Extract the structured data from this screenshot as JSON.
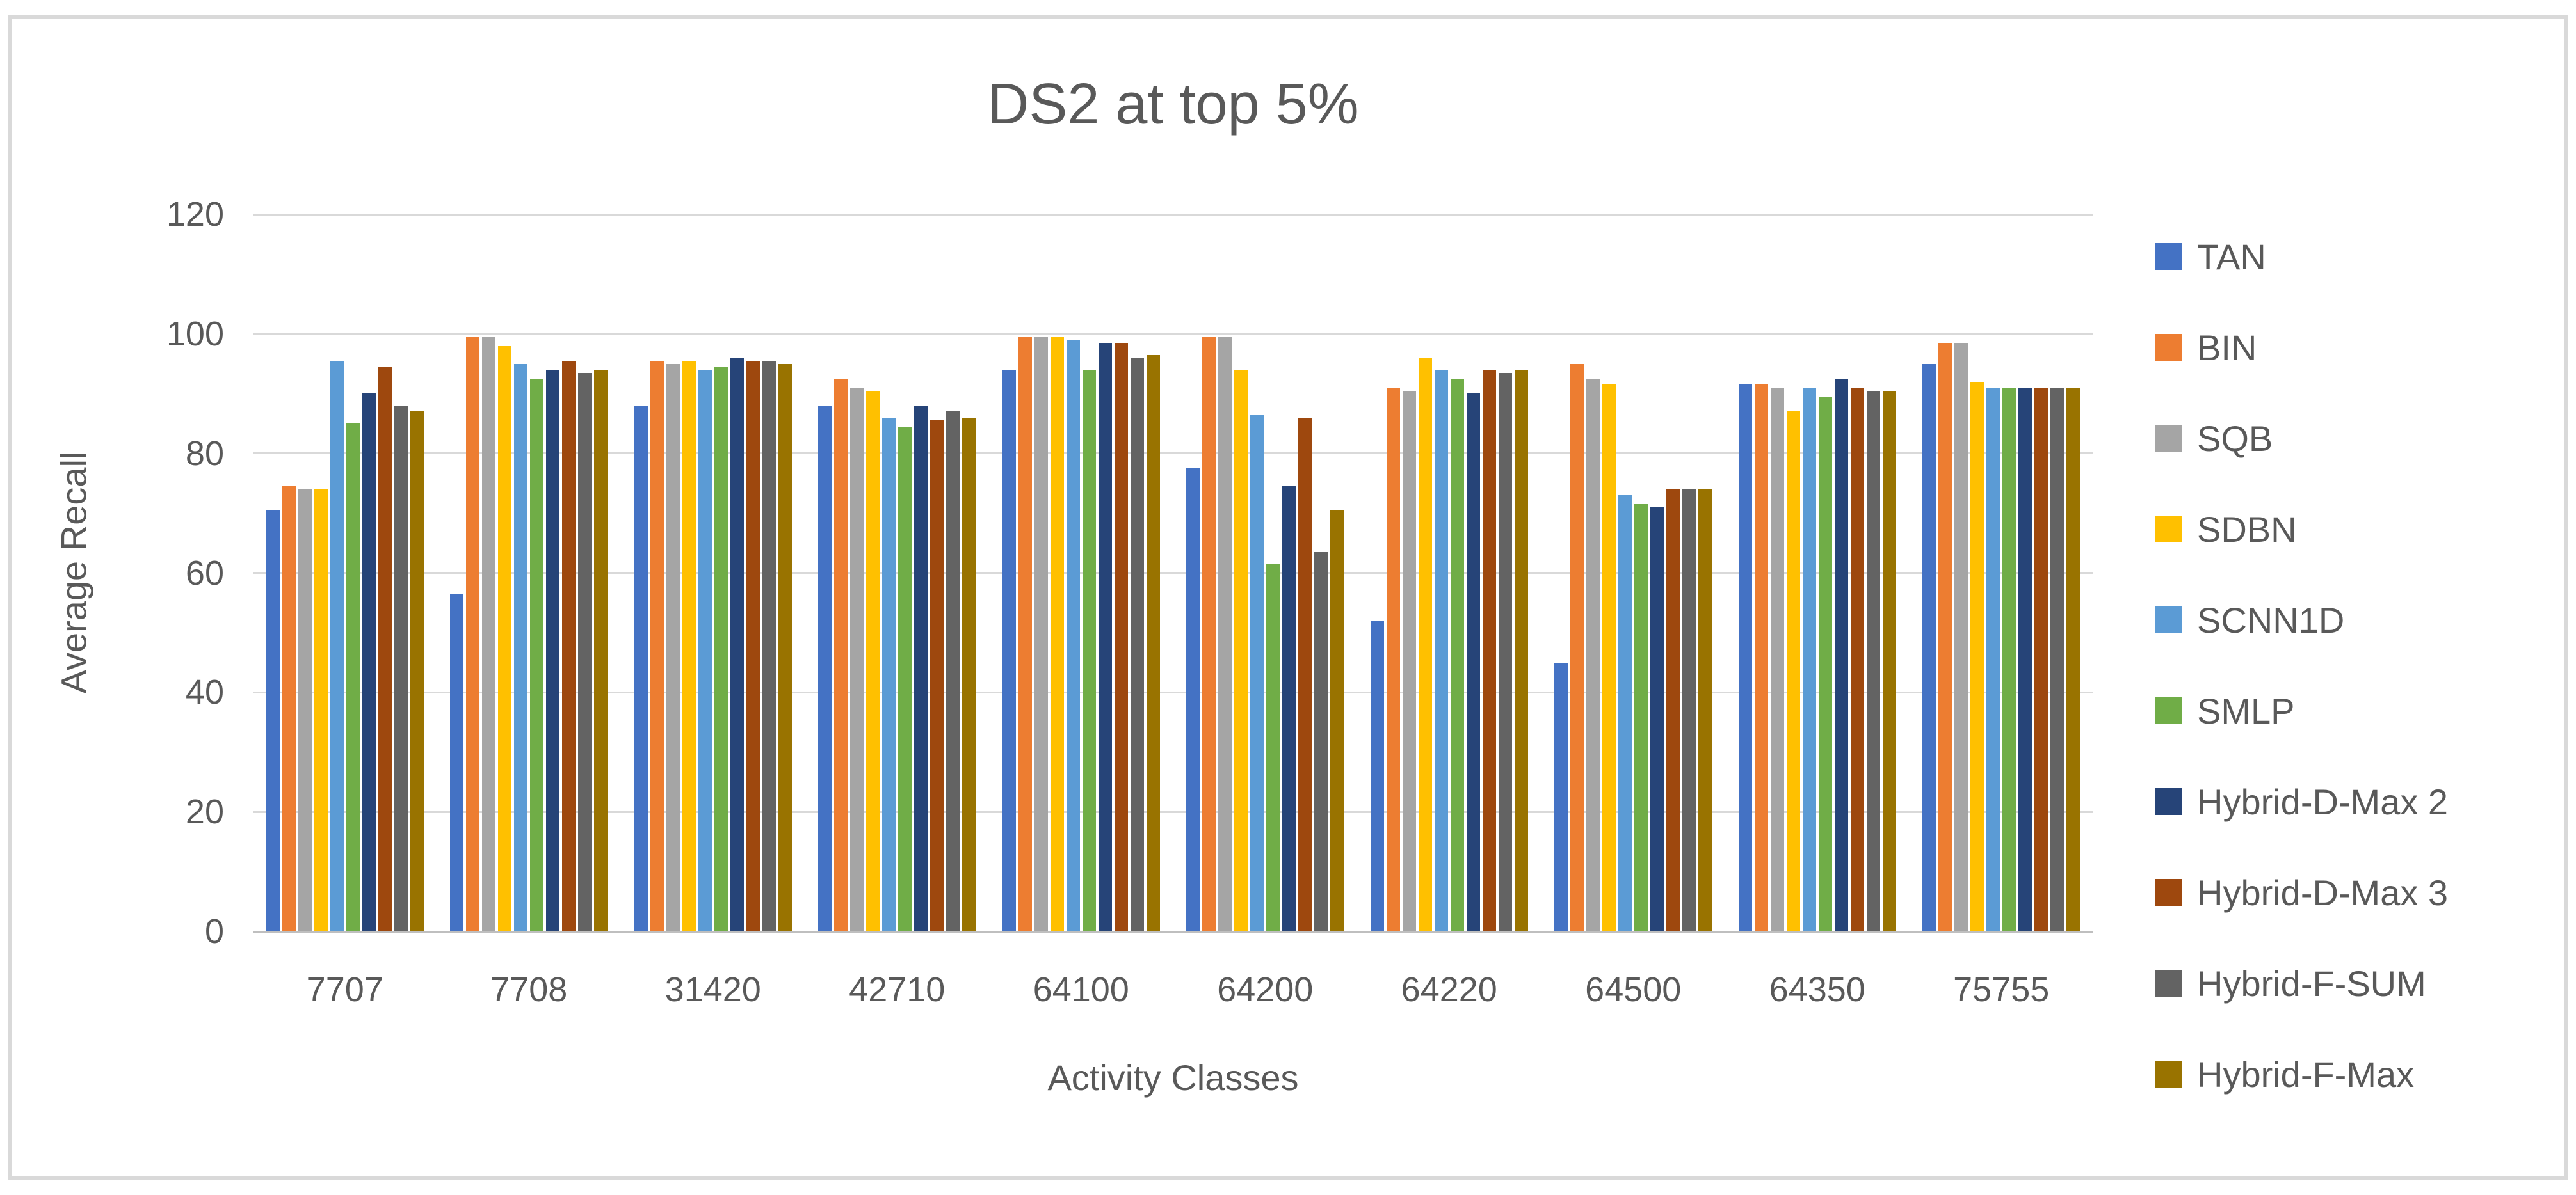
{
  "styles": {
    "text_color": "#595959",
    "gridline_color": "#D9D9D9",
    "axis_line_color": "#BFBFBF",
    "frame_border_color": "#D9D9D9",
    "background_color": "#FFFFFF"
  },
  "chart_data": {
    "type": "bar",
    "title": "DS2 at top 5%",
    "xlabel": "Activity Classes",
    "ylabel": "Average Recall",
    "ylim": [
      0,
      120
    ],
    "yticks": [
      0,
      20,
      40,
      60,
      80,
      100,
      120
    ],
    "grid": true,
    "legend_position": "right",
    "categories": [
      "7707",
      "7708",
      "31420",
      "42710",
      "64100",
      "64200",
      "64220",
      "64500",
      "64350",
      "75755"
    ],
    "series": [
      {
        "name": "TAN",
        "color": "#4472C4",
        "values": [
          70.5,
          56.5,
          88,
          88,
          94,
          77.5,
          52,
          45,
          91.5,
          95
        ]
      },
      {
        "name": "BIN",
        "color": "#ED7D31",
        "values": [
          74.5,
          99.5,
          95.5,
          92.5,
          99.5,
          99.5,
          91,
          95,
          91.5,
          98.5
        ]
      },
      {
        "name": "SQB",
        "color": "#A5A5A5",
        "values": [
          74,
          99.5,
          95,
          91,
          99.5,
          99.5,
          90.5,
          92.5,
          91,
          98.5
        ]
      },
      {
        "name": "SDBN",
        "color": "#FFC000",
        "values": [
          74,
          98,
          95.5,
          90.5,
          99.5,
          94,
          96,
          91.5,
          87,
          92
        ]
      },
      {
        "name": "SCNN1D",
        "color": "#5B9BD5",
        "values": [
          95.5,
          95,
          94,
          86,
          99,
          86.5,
          94,
          73,
          91,
          91
        ]
      },
      {
        "name": "SMLP",
        "color": "#70AD47",
        "values": [
          85,
          92.5,
          94.5,
          84.5,
          94,
          61.5,
          92.5,
          71.5,
          89.5,
          91
        ]
      },
      {
        "name": "Hybrid-D-Max 2",
        "color": "#264478",
        "values": [
          90,
          94,
          96,
          88,
          98.5,
          74.5,
          90,
          71,
          92.5,
          91
        ]
      },
      {
        "name": "Hybrid-D-Max 3",
        "color": "#9E480E",
        "values": [
          94.5,
          95.5,
          95.5,
          85.5,
          98.5,
          86,
          94,
          74,
          91,
          91
        ]
      },
      {
        "name": "Hybrid-F-SUM",
        "color": "#636363",
        "values": [
          88,
          93.5,
          95.5,
          87,
          96,
          63.5,
          93.5,
          74,
          90.5,
          91
        ]
      },
      {
        "name": "Hybrid-F-Max",
        "color": "#997300",
        "values": [
          87,
          94,
          95,
          86,
          96.5,
          70.5,
          94,
          74,
          90.5,
          91
        ]
      }
    ]
  }
}
